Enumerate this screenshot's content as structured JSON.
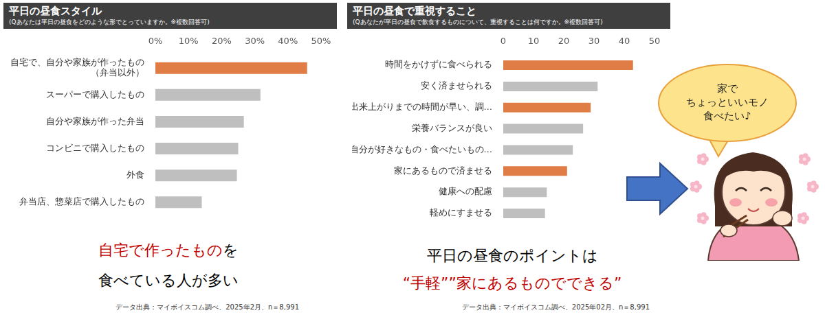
{
  "chart_data": [
    {
      "type": "bar",
      "orientation": "horizontal",
      "title": "平日の昼食スタイル",
      "subtitle": "(Qあなたは平日の昼食をどのような形でとっていますか。※複数回答可)",
      "categories": [
        "自宅で、自分や家族が作ったもの\n（弁当以外）",
        "スーパーで購入したもの",
        "自分や家族が作った弁当",
        "コンビニで購入したもの",
        "外食",
        "弁当店、惣菜店で購入したもの"
      ],
      "values": [
        45.8,
        31.7,
        26.7,
        25.0,
        24.6,
        14.0
      ],
      "colors": [
        "#e07c45",
        "#bfbfbf",
        "#bfbfbf",
        "#bfbfbf",
        "#bfbfbf",
        "#bfbfbf"
      ],
      "xlim": [
        0,
        50
      ],
      "xticks": [
        {
          "value": 0,
          "label": "0%"
        },
        {
          "value": 10,
          "label": "10%"
        },
        {
          "value": 20,
          "label": "20%"
        },
        {
          "value": 30,
          "label": "30%"
        },
        {
          "value": 40,
          "label": "40%"
        },
        {
          "value": 50,
          "label": "50%"
        }
      ],
      "grid": false,
      "annotations": {
        "caption": [
          [
            {
              "text": "自宅で作ったもの",
              "color": "#c00000"
            },
            {
              "text": "を",
              "color": "#000000"
            }
          ],
          [
            {
              "text": "食べている人が多い",
              "color": "#000000"
            }
          ]
        ],
        "source": "データ出典：マイボイスコム調べ、2025年2月、n＝8,991"
      }
    },
    {
      "type": "bar",
      "orientation": "horizontal",
      "title": "平日の昼食で重視すること",
      "subtitle": "(Qあなたが平日の昼食で飲食するものについて、重視することは何ですか。※複数回答可)",
      "categories": [
        "時間をかけずに食べられる",
        "安く済ませられる",
        "出来上がりまでの時間が早い、調…",
        "栄養バランスが良い",
        "自分が好きなもの・食べたいもの…",
        "家にあるもので済ませる",
        "健康への配慮",
        "軽めにすませる"
      ],
      "values": [
        42.9,
        31.2,
        28.9,
        26.4,
        23.0,
        21.1,
        14.4,
        13.8
      ],
      "colors": [
        "#e07c45",
        "#bfbfbf",
        "#e07c45",
        "#bfbfbf",
        "#bfbfbf",
        "#e07c45",
        "#bfbfbf",
        "#bfbfbf"
      ],
      "xlim": [
        0,
        50
      ],
      "xticks": [
        0,
        10,
        20,
        30,
        40,
        50
      ],
      "grid": false,
      "annotations": {
        "caption": [
          [
            {
              "text": "平日の昼食のポイントは",
              "color": "#000000"
            }
          ],
          [
            {
              "text": "“手軽””家にあるものでできる”",
              "color": "#c00000"
            }
          ]
        ],
        "source": "データ出典：マイボイスコム調べ、2025年02月、n＝8,991"
      }
    }
  ],
  "illustration": {
    "speech_bubble": [
      "家で",
      "ちょっといいモノ",
      "食べたい♪"
    ]
  }
}
